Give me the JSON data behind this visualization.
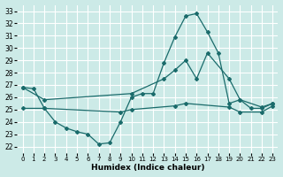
{
  "xlabel": "Humidex (Indice chaleur)",
  "bg_color": "#cceae7",
  "grid_color": "#ffffff",
  "line_color": "#1a6b6b",
  "xlim": [
    -0.5,
    23.5
  ],
  "ylim": [
    21.5,
    33.5
  ],
  "xticks": [
    0,
    1,
    2,
    3,
    4,
    5,
    6,
    7,
    8,
    9,
    10,
    11,
    12,
    13,
    14,
    15,
    16,
    17,
    18,
    19,
    20,
    21,
    22,
    23
  ],
  "yticks": [
    22,
    23,
    24,
    25,
    26,
    27,
    28,
    29,
    30,
    31,
    32,
    33
  ],
  "line1_x": [
    0,
    1,
    2,
    3,
    4,
    5,
    6,
    7,
    8,
    9,
    10,
    11,
    12,
    13,
    14,
    15,
    16,
    17,
    18,
    19,
    20,
    21,
    22,
    23
  ],
  "line1_y": [
    26.8,
    26.7,
    25.1,
    24.0,
    23.5,
    23.2,
    23.0,
    22.2,
    22.3,
    24.0,
    26.0,
    26.3,
    26.3,
    28.8,
    30.9,
    32.6,
    32.8,
    31.3,
    29.6,
    25.5,
    25.8,
    25.1,
    25.1,
    25.5
  ],
  "line2_x": [
    0,
    2,
    10,
    13,
    14,
    15,
    16,
    17,
    19,
    20,
    22,
    23
  ],
  "line2_y": [
    26.8,
    25.8,
    26.3,
    27.5,
    28.2,
    29.0,
    27.5,
    29.6,
    27.5,
    25.8,
    25.2,
    25.5
  ],
  "line3_x": [
    0,
    2,
    9,
    10,
    14,
    15,
    19,
    20,
    22,
    23
  ],
  "line3_y": [
    25.1,
    25.1,
    24.8,
    25.0,
    25.3,
    25.5,
    25.2,
    24.8,
    24.8,
    25.3
  ]
}
